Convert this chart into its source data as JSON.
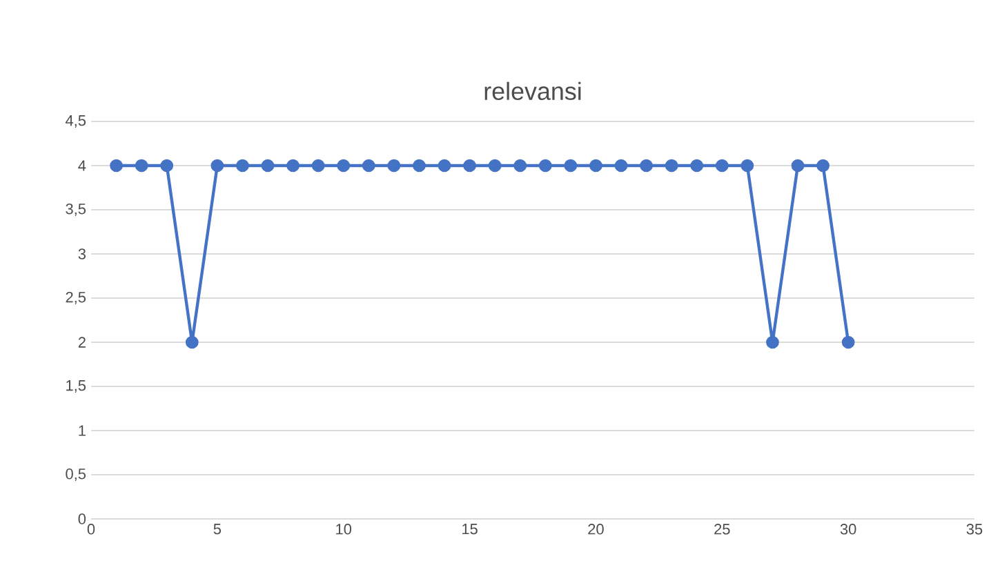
{
  "chart_data": {
    "type": "line",
    "title": "relevansi",
    "x": [
      1,
      2,
      3,
      4,
      5,
      6,
      7,
      8,
      9,
      10,
      11,
      12,
      13,
      14,
      15,
      16,
      17,
      18,
      19,
      20,
      21,
      22,
      23,
      24,
      25,
      26,
      27,
      28,
      29,
      30
    ],
    "values": [
      4,
      4,
      4,
      2,
      4,
      4,
      4,
      4,
      4,
      4,
      4,
      4,
      4,
      4,
      4,
      4,
      4,
      4,
      4,
      4,
      4,
      4,
      4,
      4,
      4,
      4,
      2,
      4,
      4,
      2
    ],
    "color": "#4472c4",
    "marker": "circle",
    "line_style": "solid",
    "grid": "y",
    "xlim": [
      0,
      35
    ],
    "xticks": [
      0,
      5,
      10,
      15,
      20,
      25,
      30,
      35
    ],
    "ylim": [
      0,
      4.5
    ],
    "yticks": [
      0,
      {
        "value": 0.5,
        "label": "0,5"
      },
      1,
      {
        "value": 1.5,
        "label": "1,5"
      },
      2,
      {
        "value": 2.5,
        "label": "2,5"
      },
      3,
      {
        "value": 3.5,
        "label": "3,5"
      },
      4,
      {
        "value": 4.5,
        "label": "4,5"
      }
    ]
  }
}
